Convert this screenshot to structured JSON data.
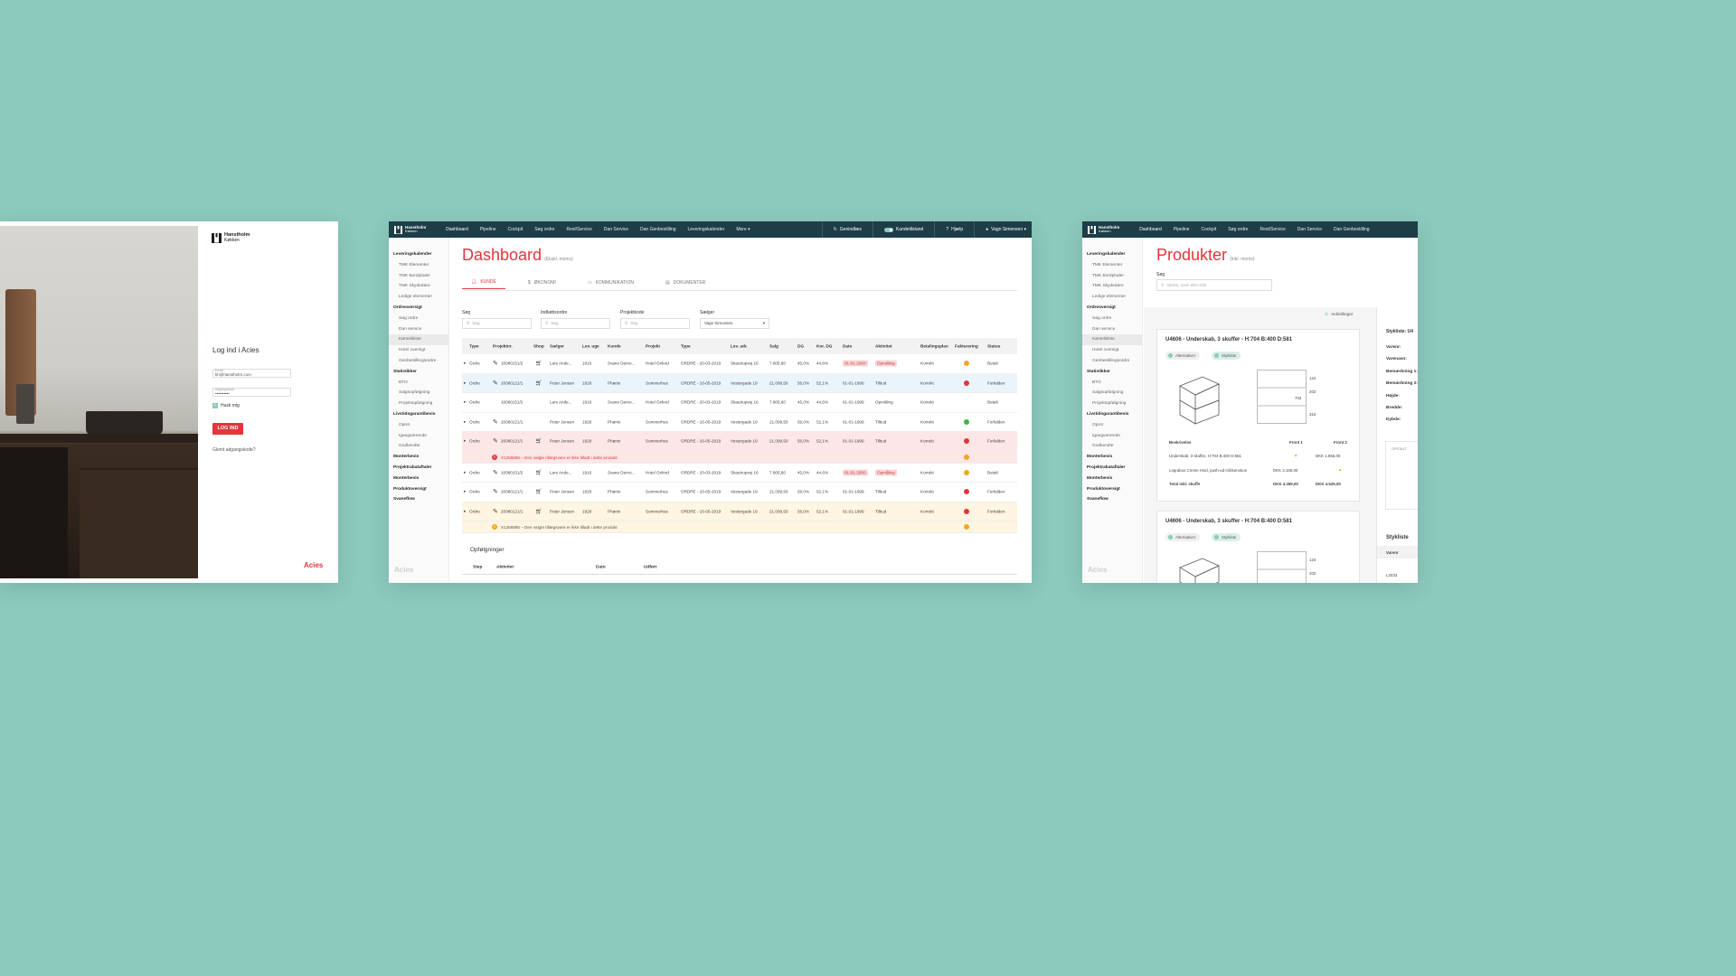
{
  "login": {
    "brand_name": "Hanstholm",
    "brand_sub": "Køkken",
    "title": "Log ind i Acies",
    "email_label": "Email",
    "email_value": "kh@hanstholm.com",
    "password_label": "Adgangskode",
    "password_value": "••••••••••",
    "remember_label": "Husk mig",
    "login_button": "LOG IND",
    "forgot_link": "Glemt adgangskode?",
    "footer_logo": "Acies",
    "accent_color": "#e5343c"
  },
  "dashboard": {
    "brand_name": "Hanstholm",
    "brand_sub": "Køkken",
    "nav": [
      "Dashboard",
      "Pipeline",
      "Cockpit",
      "Søg ordre",
      "Rest/Service",
      "Dan Service",
      "Dan Genbestilling",
      "Leveringskalender",
      "Mere ▾"
    ],
    "reload": "Genindlæs",
    "customer_mode": "Kundetilstand",
    "help": "Hjælp",
    "user": "Vagn Simonsen ▾",
    "sidebar": [
      {
        "label": "Leveringskalender",
        "level": "h"
      },
      {
        "label": "TMK Elementer",
        "level": "sub"
      },
      {
        "label": "TMK Bordplader",
        "level": "sub"
      },
      {
        "label": "TMK Skydedøre",
        "level": "sub"
      },
      {
        "label": "Ledige elementer",
        "level": "sub"
      },
      {
        "label": "Ordreoversigt",
        "level": "h"
      },
      {
        "label": "Søg ordre",
        "level": "sub"
      },
      {
        "label": "Dan service",
        "level": "sub"
      },
      {
        "label": "Kørselsliste",
        "level": "sub sel"
      },
      {
        "label": "Hotel oversigt",
        "level": "sub"
      },
      {
        "label": "Genbestillingsordre",
        "level": "sub"
      },
      {
        "label": "Statistikker",
        "level": "h"
      },
      {
        "label": "BTO",
        "level": "sub"
      },
      {
        "label": "Salgsopfølgning",
        "level": "sub"
      },
      {
        "label": "Projektopfølgning",
        "level": "sub"
      },
      {
        "label": "Livstidsgarantibevis",
        "level": "h"
      },
      {
        "label": "Opret",
        "level": "sub"
      },
      {
        "label": "Igangværende",
        "level": "sub"
      },
      {
        "label": "Godkendte",
        "level": "sub"
      },
      {
        "label": "Monterbevis",
        "level": "h"
      },
      {
        "label": "Projektrabataftaler",
        "level": "h"
      },
      {
        "label": "Monterbevis",
        "level": "h"
      },
      {
        "label": "Produktoversigt",
        "level": "h"
      },
      {
        "label": "Svaneflow",
        "level": "h"
      }
    ],
    "sidebar_footer": "Acies",
    "title": "Dashboard",
    "title_note": "(Ekskl. moms)",
    "tabs": [
      {
        "label": "KUNDE",
        "icon": "user-icon"
      },
      {
        "label": "ØKONOMI",
        "icon": "dollar-icon"
      },
      {
        "label": "KOMMUNIKATION",
        "icon": "chat-icon"
      },
      {
        "label": "DOKUMENTER",
        "icon": "document-icon"
      }
    ],
    "filters": {
      "search_label": "Søg",
      "search_placeholder": "Søg",
      "purchase_label": "Indkøbsordre",
      "purchase_placeholder": "Søg",
      "project_label": "Projektkode",
      "project_placeholder": "Søg",
      "seller_label": "Sælger",
      "seller_value": "Vagn Simonsen"
    },
    "columns": [
      "Type",
      "Projektnr.",
      "Shop",
      "Sælger",
      "Lev. uge",
      "Kunde",
      "Projekt",
      "Type",
      "Lev. adr.",
      "Salg",
      "DG",
      "Kor. DG",
      "Dato",
      "Aktivitet",
      "Betalingsplan",
      "Fakturering",
      "Status"
    ],
    "rows": [
      {
        "type": "Ordre",
        "projnr": "10080151/2",
        "edit": true,
        "shop": true,
        "seller": "Lars Ande...",
        "week": "1916",
        "customer": "Svane Demo...",
        "project": "Hotel Oxford",
        "otype": "ORDRE - 20-03-2019",
        "addr": "Skautrupvej 16",
        "sale": "7.805,60",
        "dg": "45,0%",
        "kdg": "44,6%",
        "date": "01-01-2000",
        "date_tag": true,
        "activity": "Opmåling",
        "act_tag": true,
        "plan": "Korrekt",
        "dot": "#f0a81d",
        "status": "Betalt",
        "bg": ""
      },
      {
        "type": "Ordre",
        "projnr": "20080121/1",
        "edit": true,
        "shop": true,
        "seller": "Peter Jensen",
        "week": "1928",
        "customer": "Phønix",
        "project": "Sommerhus",
        "otype": "ORDRE - 16-05-2019",
        "addr": "Vestergade 19",
        "sale": "21.099,50",
        "dg": "56,0%",
        "kdg": "52,1%",
        "date": "01-01-1999",
        "date_tag": false,
        "activity": "Tilbud",
        "act_tag": false,
        "plan": "Korrekt",
        "dot": "#e5343c",
        "status": "Forfalden",
        "bg": "blue"
      },
      {
        "type": "Ordre",
        "projnr": "10080151/2",
        "edit": false,
        "shop": false,
        "seller": "Lars Ande...",
        "week": "1916",
        "customer": "Svane Demo...",
        "project": "Hotel Oxford",
        "otype": "ORDRE - 20-03-2019",
        "addr": "Skautrupvej 16",
        "sale": "7.805,60",
        "dg": "45,0%",
        "kdg": "44,6%",
        "date": "01-01-1999",
        "date_tag": false,
        "activity": "Opmåling",
        "act_tag": false,
        "plan": "Korrekt",
        "dot": "",
        "status": "Betalt",
        "bg": ""
      },
      {
        "type": "Ordre",
        "projnr": "20080121/1",
        "edit": true,
        "shop": false,
        "seller": "Peter Jensen",
        "week": "1928",
        "customer": "Phønix",
        "project": "Sommerhus",
        "otype": "ORDRE - 16-05-2019",
        "addr": "Vestergade 19",
        "sale": "21.099,50",
        "dg": "56,0%",
        "kdg": "52,1%",
        "date": "01-01-1999",
        "date_tag": false,
        "activity": "Tilbud",
        "act_tag": false,
        "plan": "Korrekt",
        "dot": "#3cb54a",
        "status": "Forfalden",
        "bg": ""
      },
      {
        "type": "Ordre",
        "projnr": "20080121/1",
        "edit": true,
        "shop": true,
        "seller": "Peter Jensen",
        "week": "1928",
        "customer": "Phønix",
        "project": "Sommerhus",
        "otype": "ORDRE - 16-05-2019",
        "addr": "Vestergade 19",
        "sale": "21.099,50",
        "dg": "56,0%",
        "kdg": "52,1%",
        "date": "01-01-1999",
        "date_tag": false,
        "activity": "Tilbud",
        "act_tag": false,
        "plan": "Korrekt",
        "dot": "#e5343c",
        "dot2": "#f0a81d",
        "status": "Forfalden",
        "bg": "red",
        "warning": "X1256885 – Den valgte tillægsvare er ikke tilladt i dette produkt",
        "warning_bg": "red"
      },
      {
        "type": "Ordre",
        "projnr": "10080151/2",
        "edit": true,
        "shop": true,
        "seller": "Lars Ande...",
        "week": "1916",
        "customer": "Svane Demo...",
        "project": "Hotel Oxford",
        "otype": "ORDRE - 20-03-2019",
        "addr": "Skautrupvej 16",
        "sale": "7.805,60",
        "dg": "45,0%",
        "kdg": "44,6%",
        "date": "01-01-2000",
        "date_tag": true,
        "activity": "Opmåling",
        "act_tag": true,
        "plan": "Korrekt",
        "dot": "#f0a81d",
        "status": "Betalt",
        "bg": ""
      },
      {
        "type": "Ordre",
        "projnr": "20080121/1",
        "edit": true,
        "shop": true,
        "seller": "Peter Jensen",
        "week": "1928",
        "customer": "Phønix",
        "project": "Sommerhus",
        "otype": "ORDRE - 16-05-2019",
        "addr": "Vestergade 19",
        "sale": "21.099,50",
        "dg": "56,0%",
        "kdg": "52,1%",
        "date": "01-01-1999",
        "date_tag": false,
        "activity": "Tilbud",
        "act_tag": false,
        "plan": "Korrekt",
        "dot": "#e5343c",
        "status": "Forfalden",
        "bg": ""
      },
      {
        "type": "Ordre",
        "projnr": "20080121/1",
        "edit": true,
        "shop": true,
        "seller": "Peter Jensen",
        "week": "1928",
        "customer": "Phønix",
        "project": "Sommerhus",
        "otype": "ORDRE - 16-05-2019",
        "addr": "Vestergade 19",
        "sale": "21.099,50",
        "dg": "56,0%",
        "kdg": "52,1%",
        "date": "01-01-1999",
        "date_tag": false,
        "activity": "Tilbud",
        "act_tag": false,
        "plan": "Korrekt",
        "dot": "#e5343c",
        "dot2": "#f0a81d",
        "status": "Forfalden",
        "bg": "yellow",
        "warning": "X1256885 – Den valgte tillægsvare er ikke tilladt i dette produkt",
        "warning_bg": "yellow"
      }
    ],
    "followups_title": "Opfølgninger",
    "followups_columns": [
      "Step",
      "Aktivitet",
      "Dato",
      "Udført"
    ]
  },
  "products": {
    "brand_name": "Hanstholm",
    "brand_sub": "Køkken",
    "nav": [
      "Dashboard",
      "Pipeline",
      "Cockpit",
      "Søg ordre",
      "Rest/Service",
      "Dan Service",
      "Dan Genbestilling"
    ],
    "title": "Produkter",
    "title_note": "(Inkl. moms)",
    "search_label": "Søg",
    "search_placeholder": "Varenr, navn eller mål",
    "settings": "Indstillinger",
    "card1": {
      "title": "U4606 - Underskab, 3 skuffer - H:704 B:400 D:581",
      "alt": "Alternativer",
      "bom": "Stykliste",
      "dims": [
        "124",
        "202",
        "704",
        "316"
      ],
      "col_desc": "Beskrivelse",
      "col_f1": "Front 1",
      "col_f2": "Front 2",
      "line1": "Underskab, 3 skuffer, H:704 B:400 D:581",
      "line1_f2": "DKK 1.956,00",
      "line2": "Legrabox Creme Hvid, push-ud m/blumotion",
      "line2_f1": "DKK 3.165,00",
      "total_label": "Total inkl. skuffe",
      "total_f1": "DKK 4.369,00",
      "total_f2": "DKK 4.525,00"
    },
    "card2": {
      "title": "U4606 - Underskab, 3 skuffer - H:704 B:400 D:581",
      "alt": "Alternativer",
      "bom": "Stykliste",
      "dims": [
        "124",
        "202"
      ]
    },
    "bom_panel": {
      "title": "Stykliste: U4",
      "fields": [
        "Varenr:",
        "Varenavn:",
        "Bemærkning 1:",
        "Bemærkning 2:",
        "Højde:",
        "Bredde:",
        "Dybde:"
      ],
      "opstalt": "OPSTALT",
      "list_title": "Stykliste",
      "col": "Varenr",
      "item": "L2033"
    },
    "sidebar_footer": "Acies"
  }
}
